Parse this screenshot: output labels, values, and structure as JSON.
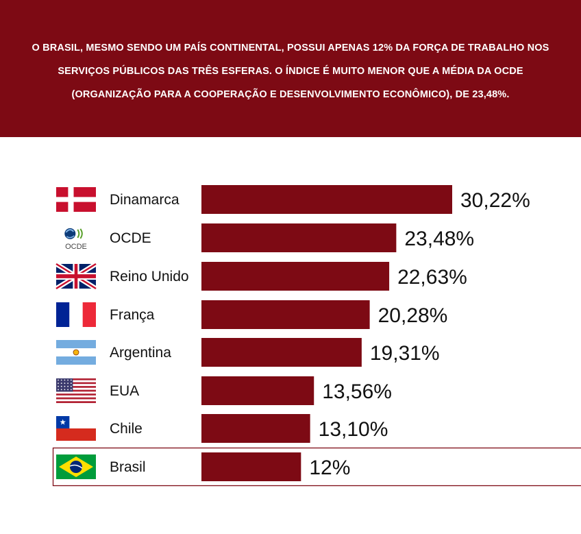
{
  "header": {
    "text": "O BRASIL, MESMO SENDO UM PAÍS CONTINENTAL, POSSUI APENAS 12% DA FORÇA DE TRABALHO NOS SERVIÇOS PÚBLICOS DAS TRÊS ESFERAS. O ÍNDICE É MUITO MENOR QUE A MÉDIA DA OCDE (ORGANIZAÇÃO PARA A COOPERAÇÃO E DESENVOLVIMENTO ECONÔMICO), DE 23,48%."
  },
  "colors": {
    "bar": "#7d0a14",
    "banner": "#7d0a14",
    "highlight_border": "#7d0a14"
  },
  "chart_data": {
    "type": "bar",
    "orientation": "horizontal",
    "categories": [
      "Dinamarca",
      "OCDE",
      "Reino Unido",
      "França",
      "Argentina",
      "EUA",
      "Chile",
      "Brasil"
    ],
    "values": [
      30.22,
      23.48,
      22.63,
      20.28,
      19.31,
      13.56,
      13.1,
      12
    ],
    "value_labels": [
      "30,22%",
      "23,48%",
      "22,63%",
      "20,28%",
      "19,31%",
      "13,56%",
      "13,10%",
      "12%"
    ],
    "icons": [
      "denmark-flag-icon",
      "oecd-logo-icon",
      "uk-flag-icon",
      "france-flag-icon",
      "argentina-flag-icon",
      "usa-flag-icon",
      "chile-flag-icon",
      "brazil-flag-icon"
    ],
    "oecd_logo_text": "OCDE",
    "highlighted": "Brasil",
    "xlim": [
      0,
      30.22
    ],
    "grid": false
  }
}
